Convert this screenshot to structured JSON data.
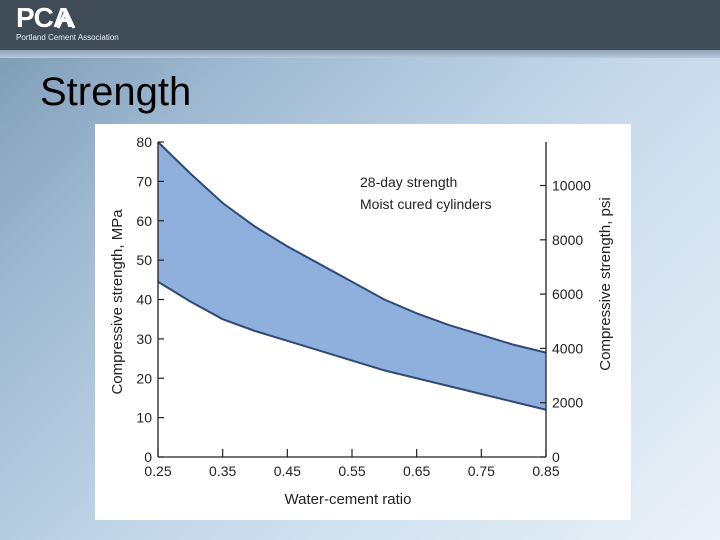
{
  "header": {
    "logo_text": "PCA",
    "logo_subtitle": "Portland Cement Association",
    "colors": {
      "bar": "#3f4b57",
      "logo": "#ffffff"
    }
  },
  "slide": {
    "title": "Strength"
  },
  "chart_data": {
    "type": "area",
    "title": "",
    "xlabel": "Water-cement ratio",
    "ylabel": "Compressive strength, MPa",
    "y2label": "Compressive strength, psi",
    "xlim": [
      0.25,
      0.85
    ],
    "ylim": [
      0,
      80
    ],
    "x_ticks": [
      0.25,
      0.35,
      0.45,
      0.55,
      0.65,
      0.75,
      0.85
    ],
    "x_tick_labels": [
      "0.25",
      "0.35",
      "0.45",
      "0.55",
      "0.65",
      "0.75",
      "0.85"
    ],
    "y_ticks": [
      0,
      10,
      20,
      30,
      40,
      50,
      60,
      70,
      80
    ],
    "y_tick_labels": [
      "0",
      "10",
      "20",
      "30",
      "40",
      "50",
      "60",
      "70",
      "80"
    ],
    "y2_ticks_psi": [
      0,
      2000,
      4000,
      6000,
      8000,
      10000
    ],
    "y2_tick_labels": [
      "0",
      "2000",
      "4000",
      "6000",
      "8000",
      "10000"
    ],
    "annotations": [
      "28-day strength",
      "Moist cured cylinders"
    ],
    "grid": false,
    "fill_color": "#8fb0dc",
    "line_color": "#2f4a78",
    "x": [
      0.25,
      0.3,
      0.35,
      0.4,
      0.45,
      0.5,
      0.55,
      0.6,
      0.65,
      0.7,
      0.75,
      0.8,
      0.85
    ],
    "series": [
      {
        "values": [
          80,
          72,
          64.5,
          58.5,
          53.5,
          49,
          44.5,
          40,
          36.5,
          33.5,
          31,
          28.5,
          26.5
        ]
      },
      {
        "values": [
          44.5,
          39.5,
          35,
          32,
          29.5,
          27,
          24.5,
          22,
          20,
          18,
          16,
          14,
          12
        ]
      }
    ]
  }
}
